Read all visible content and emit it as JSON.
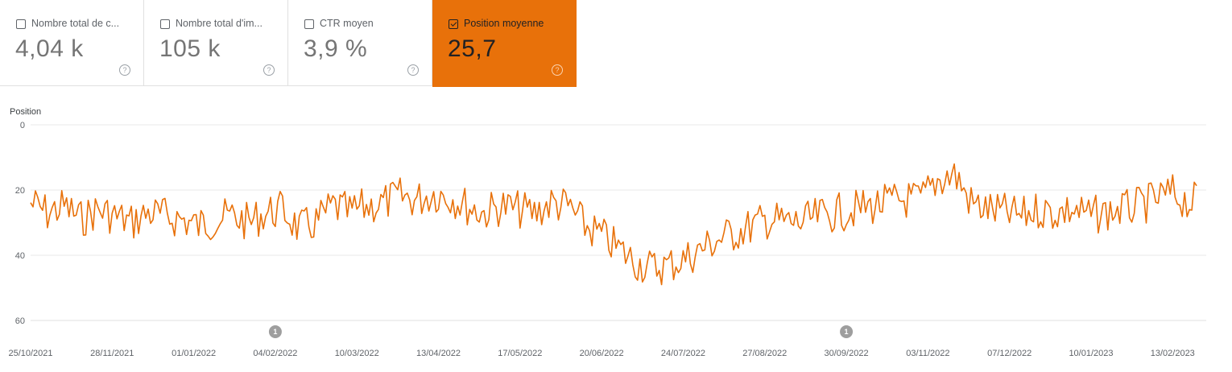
{
  "metric_cards": [
    {
      "label": "Nombre total de c...",
      "value": "4,04 k",
      "checked": false
    },
    {
      "label": "Nombre total d'im...",
      "value": "105 k",
      "checked": false
    },
    {
      "label": "CTR moyen",
      "value": "3,9 %",
      "checked": false
    },
    {
      "label": "Position moyenne",
      "value": "25,7",
      "checked": true
    }
  ],
  "help_symbol": "?",
  "colors": {
    "accent": "#e8710a",
    "line": "#e8710a",
    "grid": "#e0e0e0",
    "annotation": "#9e9e9e"
  },
  "chart_data": {
    "type": "line",
    "ylabel": "Position",
    "y_reversed": true,
    "ylim": [
      0,
      60
    ],
    "yticks": [
      0,
      20,
      40,
      60
    ],
    "xlim": [
      "2021-10-25",
      "2023-02-27"
    ],
    "xticks": [
      "25/10/2021",
      "28/11/2021",
      "01/01/2022",
      "04/02/2022",
      "10/03/2022",
      "13/04/2022",
      "17/05/2022",
      "20/06/2022",
      "24/07/2022",
      "27/08/2022",
      "30/09/2022",
      "03/11/2022",
      "07/12/2022",
      "10/01/2023",
      "13/02/2023"
    ],
    "annotations": [
      {
        "date": "2022-02-04",
        "label": "1"
      },
      {
        "date": "2022-09-30",
        "label": "1"
      }
    ],
    "grid": true,
    "series": [
      {
        "x": [
          "2021-10-25",
          "2021-11-01",
          "2021-11-08",
          "2021-11-15",
          "2021-11-22",
          "2021-11-29",
          "2021-12-06",
          "2021-12-13",
          "2021-12-20",
          "2021-12-27",
          "2022-01-03",
          "2022-01-10",
          "2022-01-17",
          "2022-01-24",
          "2022-01-31",
          "2022-02-07",
          "2022-02-14",
          "2022-02-21",
          "2022-02-28",
          "2022-03-07",
          "2022-03-14",
          "2022-03-21",
          "2022-03-28",
          "2022-04-04",
          "2022-04-11",
          "2022-04-18",
          "2022-04-25",
          "2022-05-02",
          "2022-05-09",
          "2022-05-16",
          "2022-05-23",
          "2022-05-30",
          "2022-06-06",
          "2022-06-13",
          "2022-06-20",
          "2022-06-27",
          "2022-07-04",
          "2022-07-11",
          "2022-07-18",
          "2022-07-25",
          "2022-08-01",
          "2022-08-08",
          "2022-08-15",
          "2022-08-22",
          "2022-08-29",
          "2022-09-05",
          "2022-09-12",
          "2022-09-19",
          "2022-09-26",
          "2022-10-03",
          "2022-10-10",
          "2022-10-17",
          "2022-10-24",
          "2022-10-31",
          "2022-11-07",
          "2022-11-14",
          "2022-11-21",
          "2022-11-28",
          "2022-12-05",
          "2022-12-12",
          "2022-12-19",
          "2022-12-26",
          "2023-01-02",
          "2023-01-09",
          "2023-01-16",
          "2023-01-23",
          "2023-01-30",
          "2023-02-06",
          "2023-02-13",
          "2023-02-20",
          "2023-02-27"
        ],
        "values": [
          24,
          27,
          25,
          29,
          26,
          28,
          30,
          27,
          28,
          29,
          31,
          29,
          28,
          30,
          27,
          26,
          32,
          30,
          25,
          27,
          25,
          24,
          22,
          23,
          21,
          22,
          25,
          27,
          25,
          26,
          27,
          24,
          25,
          31,
          34,
          38,
          42,
          44,
          43,
          41,
          38,
          35,
          33,
          31,
          29,
          30,
          30,
          28,
          27,
          26,
          25,
          24,
          23,
          23,
          17,
          15,
          24,
          26,
          27,
          28,
          26,
          27,
          26,
          28,
          27,
          26,
          25,
          23,
          21,
          24,
          22
        ]
      }
    ]
  }
}
